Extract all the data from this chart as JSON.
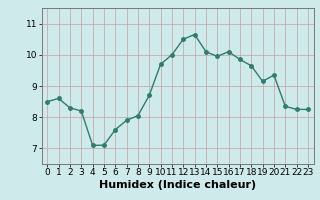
{
  "x": [
    0,
    1,
    2,
    3,
    4,
    5,
    6,
    7,
    8,
    9,
    10,
    11,
    12,
    13,
    14,
    15,
    16,
    17,
    18,
    19,
    20,
    21,
    22,
    23
  ],
  "y": [
    8.5,
    8.6,
    8.3,
    8.2,
    7.1,
    7.1,
    7.6,
    7.9,
    8.05,
    8.7,
    9.7,
    10.0,
    10.5,
    10.65,
    10.1,
    9.95,
    10.1,
    9.85,
    9.65,
    9.15,
    9.35,
    8.35,
    8.25,
    8.25
  ],
  "line_color": "#2e7d6e",
  "marker": "o",
  "markersize": 2.5,
  "linewidth": 1.0,
  "xlabel": "Humidex (Indice chaleur)",
  "ylim": [
    6.5,
    11.5
  ],
  "xlim": [
    -0.5,
    23.5
  ],
  "yticks": [
    7,
    8,
    9,
    10,
    11
  ],
  "xticks": [
    0,
    1,
    2,
    3,
    4,
    5,
    6,
    7,
    8,
    9,
    10,
    11,
    12,
    13,
    14,
    15,
    16,
    17,
    18,
    19,
    20,
    21,
    22,
    23
  ],
  "bg_color": "#ceeaea",
  "grid_color": "#c4a0a0",
  "tick_fontsize": 6.5,
  "xlabel_fontsize": 8
}
